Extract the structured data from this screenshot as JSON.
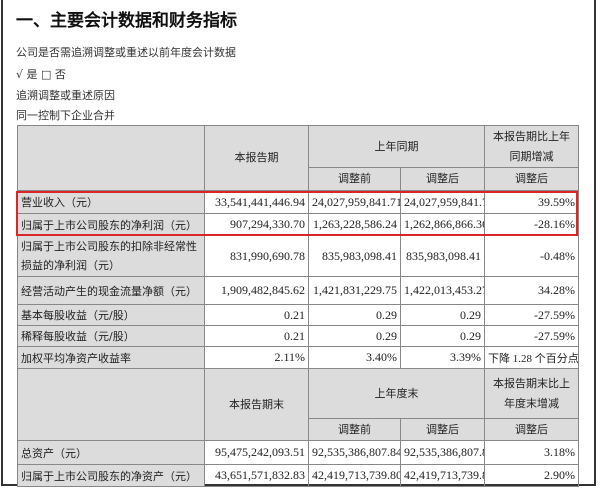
{
  "heading": "一、主要会计数据和财务指标",
  "question": "公司是否需追溯调整或重述以前年度会计数据",
  "answer": "√ 是 □ 否",
  "reason_label": "追溯调整或重述原因",
  "reason": "同一控制下企业合并",
  "table1": {
    "col_current": "本报告期",
    "col_prior": "上年同期",
    "col_change": "本报告期比上年同期增减",
    "sub_before": "调整前",
    "sub_after": "调整后",
    "sub_change": "调整后",
    "rows": [
      {
        "label": "营业收入（元）",
        "current": "33,541,441,446.94",
        "before": "24,027,959,841.71",
        "after": "24,027,959,841.71",
        "change": "39.59%"
      },
      {
        "label": "归属于上市公司股东的净利润（元）",
        "current": "907,294,330.70",
        "before": "1,263,228,586.24",
        "after": "1,262,866,866.36",
        "change": "-28.16%"
      },
      {
        "label": "归属于上市公司股东的扣除非经常性损益的净利润（元）",
        "current": "831,990,690.78",
        "before": "835,983,098.41",
        "after": "835,983,098.41",
        "change": "-0.48%"
      },
      {
        "label": "经营活动产生的现金流量净额（元）",
        "current": "1,909,482,845.62",
        "before": "1,421,831,229.75",
        "after": "1,422,013,453.27",
        "change": "34.28%"
      },
      {
        "label": "基本每股收益（元/股）",
        "current": "0.21",
        "before": "0.29",
        "after": "0.29",
        "change": "-27.59%"
      },
      {
        "label": "稀释每股收益（元/股）",
        "current": "0.21",
        "before": "0.29",
        "after": "0.29",
        "change": "-27.59%"
      },
      {
        "label": "加权平均净资产收益率",
        "current": "2.11%",
        "before": "3.40%",
        "after": "3.39%",
        "change": "下降 1.28 个百分点"
      }
    ]
  },
  "table2": {
    "col_current": "本报告期末",
    "col_prior": "上年度末",
    "col_change": "本报告期末比上年度末增减",
    "sub_before": "调整前",
    "sub_after": "调整后",
    "sub_change": "调整后",
    "rows": [
      {
        "label": "总资产（元）",
        "current": "95,475,242,093.51",
        "before": "92,535,386,807.84",
        "after": "92,535,386,807.84",
        "change": "3.18%"
      },
      {
        "label": "归属于上市公司股东的净资产（元）",
        "current": "43,651,571,832.83",
        "before": "42,419,713,739.80",
        "after": "42,419,713,739.80",
        "change": "2.90%"
      }
    ]
  },
  "highlight_color": "#d9262b"
}
